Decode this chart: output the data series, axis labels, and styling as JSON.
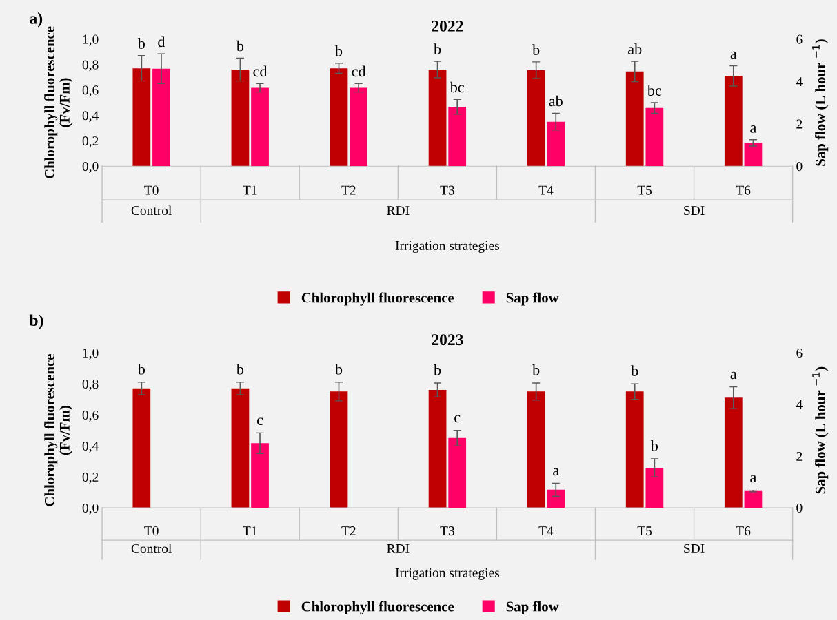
{
  "chart_data": [
    {
      "type": "bar",
      "title": "2022",
      "xlabel": "Irrigation strategies",
      "ylabel": "Chlorophyll fluorescence\n(Fv/Fm)",
      "y2label": "Sap flow (L hour $^{−1}$)",
      "categories": [
        "T0",
        "T1",
        "T2",
        "T3",
        "T4",
        "T5",
        "T6"
      ],
      "series": [
        {
          "name": "Chlorophyll fluorescence",
          "color": "#c00000",
          "values": [
            0.77,
            0.76,
            0.77,
            0.76,
            0.755,
            0.745,
            0.71
          ],
          "errors": [
            0.1,
            0.09,
            0.04,
            0.065,
            0.065,
            0.08,
            0.08
          ],
          "value_labels": [
            "b",
            "b",
            "b",
            "b",
            "b",
            "ab",
            "a"
          ]
        },
        {
          "name": "Sap flow",
          "color": "#ff0066",
          "axis": "y2",
          "values": [
            4.6,
            3.7,
            3.7,
            2.8,
            2.1,
            2.75,
            1.1
          ],
          "errors": [
            0.7,
            0.2,
            0.2,
            0.35,
            0.4,
            0.25,
            0.15
          ],
          "value_labels": [
            "d",
            "cd",
            "cd",
            "bc",
            "ab",
            "bc",
            "a"
          ]
        }
      ],
      "ylim": [
        0,
        1
      ],
      "yticks": [
        {
          "value": 0,
          "label": "0,0"
        },
        {
          "value": 0.2,
          "label": "0,2"
        },
        {
          "value": 0.4,
          "label": "0,4"
        },
        {
          "value": 0.6,
          "label": "0,6"
        },
        {
          "value": 0.8,
          "label": "0,8"
        },
        {
          "value": 1,
          "label": "1,0"
        }
      ],
      "y2lim": [
        0,
        6
      ],
      "y2ticks": [
        0,
        2,
        4,
        6
      ],
      "grid": false,
      "legend": "bottom",
      "annotations": [
        "a)",
        "Control",
        "RDI",
        "SDI"
      ]
    },
    {
      "type": "bar",
      "title": "2023",
      "xlabel": "Irrigation strategies",
      "ylabel": "Chlorophyll fluorescence\n(Fv/Fm)",
      "y2label": "Sap flow (L hour $^{−1}$)",
      "categories": [
        "T0",
        "T1",
        "T2",
        "T3",
        "T4",
        "T5",
        "T6"
      ],
      "series": [
        {
          "name": "Chlorophyll fluorescence",
          "color": "#c00000",
          "values": [
            0.77,
            0.77,
            0.75,
            0.76,
            0.75,
            0.75,
            0.71
          ],
          "errors": [
            0.04,
            0.04,
            0.06,
            0.045,
            0.055,
            0.05,
            0.07
          ],
          "value_labels": [
            "b",
            "b",
            "b",
            "b",
            "b",
            "b",
            "a"
          ]
        },
        {
          "name": "Sap flow",
          "color": "#ff0066",
          "axis": "y2",
          "values": [
            null,
            2.5,
            null,
            2.7,
            0.7,
            1.55,
            0.65
          ],
          "errors": [
            null,
            0.4,
            null,
            0.3,
            0.25,
            0.35,
            0.03
          ],
          "value_labels": [
            null,
            "c",
            null,
            "c",
            "a",
            "b",
            "a"
          ]
        }
      ],
      "ylim": [
        0,
        1
      ],
      "yticks": [
        {
          "value": 0,
          "label": "0,0"
        },
        {
          "value": 0.2,
          "label": "0,2"
        },
        {
          "value": 0.4,
          "label": "0,4"
        },
        {
          "value": 0.6,
          "label": "0,6"
        },
        {
          "value": 0.8,
          "label": "0,8"
        },
        {
          "value": 1,
          "label": "1,0"
        }
      ],
      "y2lim": [
        0,
        6
      ],
      "y2ticks": [
        0,
        2,
        4,
        6
      ],
      "grid": false,
      "legend": "bottom",
      "annotations": [
        "b)",
        "Control",
        "RDI",
        "SDI"
      ]
    }
  ]
}
